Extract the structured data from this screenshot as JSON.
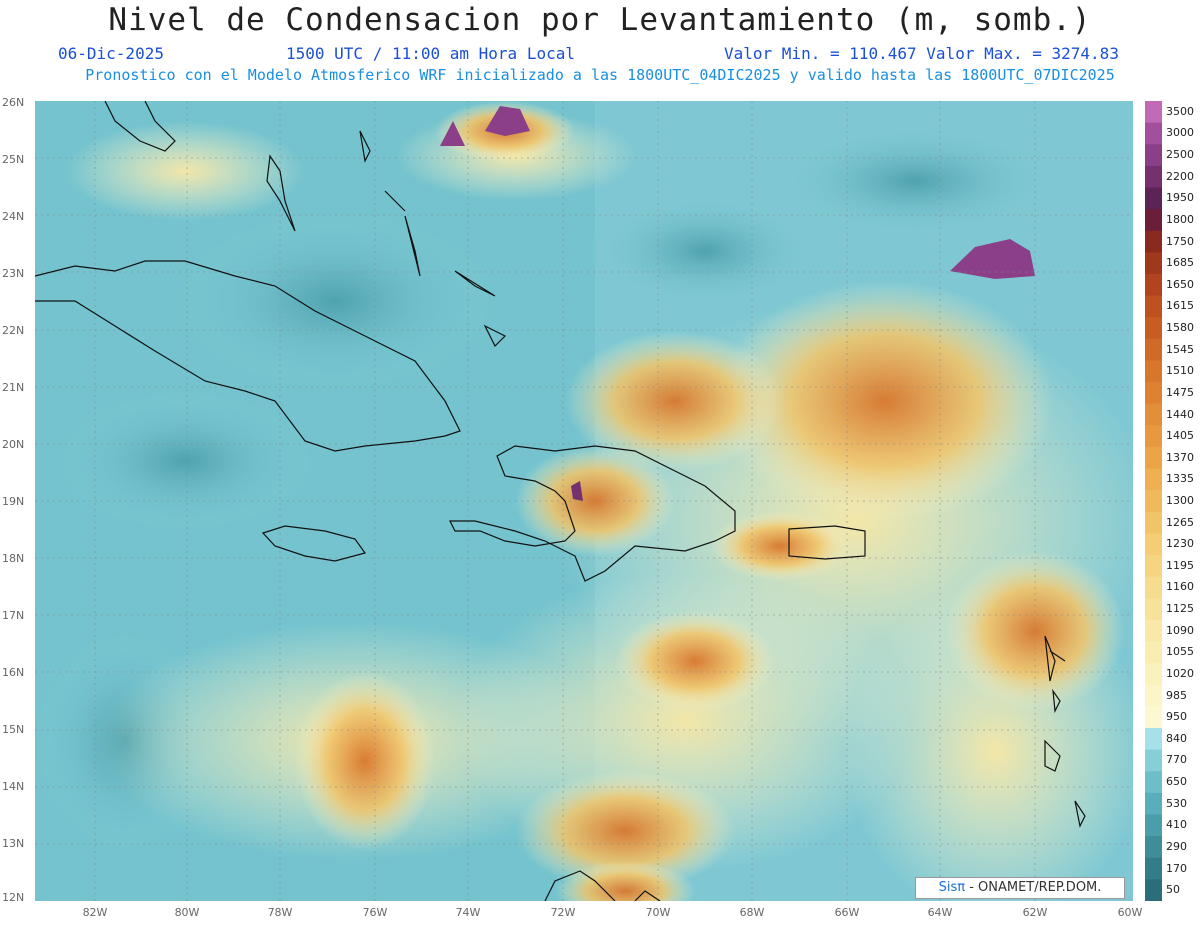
{
  "header": {
    "title": "Nivel de Condensacion por Levantamiento (m, somb.)",
    "date": "06-Dic-2025",
    "time": "1500 UTC / 11:00 am Hora Local",
    "minmax": "Valor Min. = 110.467  Valor Max. = 3274.83",
    "forecast": "Pronostico con el Modelo Atmosferico WRF inicializado a las 1800UTC_04DIC2025 y valido hasta las  1800UTC_07DIC2025"
  },
  "axes": {
    "lat_labels": [
      "26N",
      "25N",
      "24N",
      "23N",
      "22N",
      "21N",
      "20N",
      "19N",
      "18N",
      "17N",
      "16N",
      "15N",
      "14N",
      "13N",
      "12N"
    ],
    "lon_labels": [
      "82W",
      "80W",
      "78W",
      "76W",
      "74W",
      "72W",
      "70W",
      "68W",
      "66W",
      "64W",
      "62W",
      "60W"
    ]
  },
  "colorbar": {
    "labels": [
      "3500",
      "3000",
      "2500",
      "2200",
      "1950",
      "1800",
      "1750",
      "1685",
      "1650",
      "1615",
      "1580",
      "1545",
      "1510",
      "1475",
      "1440",
      "1405",
      "1370",
      "1335",
      "1300",
      "1265",
      "1230",
      "1195",
      "1160",
      "1125",
      "1090",
      "1055",
      "1020",
      "985",
      "950",
      "840",
      "770",
      "650",
      "530",
      "410",
      "290",
      "170",
      "50"
    ],
    "colors": [
      "#c06ab8",
      "#a2509e",
      "#8a3f88",
      "#74306f",
      "#5c2456",
      "#6b1e3a",
      "#8a2a1e",
      "#a0381c",
      "#b1441f",
      "#be5120",
      "#c85d24",
      "#d06a28",
      "#d8762c",
      "#de8232",
      "#e38e38",
      "#e8993f",
      "#eba546",
      "#eeb050",
      "#f0ba5c",
      "#f2c468",
      "#f4cd76",
      "#f5d582",
      "#f7dc8e",
      "#f8e29a",
      "#f9e8a6",
      "#faedb2",
      "#fbf1bd",
      "#fcf5c8",
      "#fdf8d2",
      "#a6e0e8",
      "#86cfd9",
      "#6cbfca",
      "#58aebb",
      "#4a9eab",
      "#3e8d9b",
      "#337d8b",
      "#2a6d7b"
    ]
  },
  "credit": {
    "brand": "Sisπ",
    "text": "- ONAMET/REP.DOM."
  }
}
